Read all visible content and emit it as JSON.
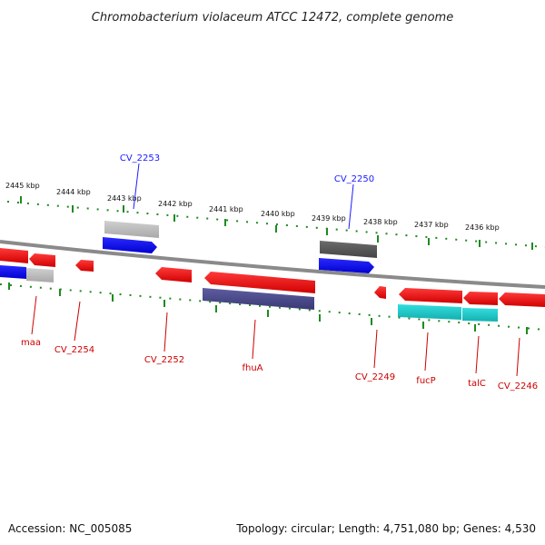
{
  "title": "Chromobacterium violaceum ATCC 12472, complete genome",
  "footer": {
    "accession": "Accession: NC_005085",
    "summary": "Topology: circular; Length: 4,751,080 bp; Genes: 4,530"
  },
  "colors": {
    "backbone": "#8a8a8a",
    "tick": "#1f8a1f",
    "forward_gene": "#1a1aff",
    "forward_gene_gray": "#b8b8b8",
    "forward_gene_dark": "#5a5a5a",
    "reverse_gene": "#ff0000",
    "reverse_gene_gray": "#bbbbbb",
    "reverse_gene_indigo": "#4b4a8c",
    "reverse_gene_cyan": "#22c8c8",
    "label_forward": "#1a1aff",
    "label_reverse": "#cc0000"
  },
  "scale": {
    "kbp_labels": [
      "2445 kbp",
      "2444 kbp",
      "2443 kbp",
      "2442 kbp",
      "2441 kbp",
      "2440 kbp",
      "2439 kbp",
      "2438 kbp",
      "2437 kbp",
      "2436 kbp"
    ]
  },
  "gene_labels": {
    "forward": [
      "CV_2253",
      "CV_2250"
    ],
    "reverse": [
      "maa",
      "CV_2254",
      "CV_2252",
      "fhuA",
      "CV_2249",
      "fucP",
      "talC",
      "CV_2246"
    ]
  }
}
